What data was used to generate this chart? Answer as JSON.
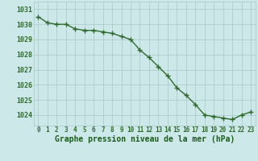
{
  "hours": [
    0,
    1,
    2,
    3,
    4,
    5,
    6,
    7,
    8,
    9,
    10,
    11,
    12,
    13,
    14,
    15,
    16,
    17,
    18,
    19,
    20,
    21,
    22,
    23
  ],
  "pressure": [
    1030.5,
    1030.1,
    1030.0,
    1030.0,
    1029.7,
    1029.6,
    1029.6,
    1029.5,
    1029.4,
    1029.2,
    1029.0,
    1028.3,
    1027.8,
    1027.2,
    1026.6,
    1025.8,
    1025.3,
    1024.7,
    1024.0,
    1023.9,
    1023.8,
    1023.7,
    1024.0,
    1024.2
  ],
  "line_color": "#2d6b2d",
  "marker": "+",
  "markersize": 4,
  "linewidth": 1.0,
  "bg_color": "#cde8e8",
  "grid_color": "#a8c8c8",
  "xlabel": "Graphe pression niveau de la mer (hPa)",
  "xlabel_color": "#1a5c1a",
  "xlabel_fontsize": 7,
  "yticks": [
    1024,
    1025,
    1026,
    1027,
    1028,
    1029,
    1030,
    1031
  ],
  "ylim": [
    1023.3,
    1031.5
  ],
  "xlim": [
    -0.5,
    23.5
  ],
  "tick_color": "#2d6b2d",
  "tick_fontsize": 6,
  "xtick_fontsize": 5.5
}
